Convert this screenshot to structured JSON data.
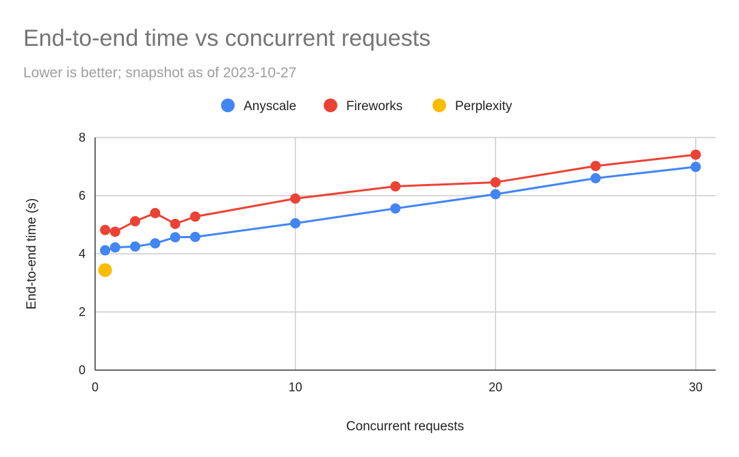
{
  "chart_data": {
    "type": "line",
    "title": "End-to-end time vs concurrent requests",
    "subtitle": "Lower is better; snapshot as of 2023-10-27",
    "xlabel": "Concurrent requests",
    "ylabel": "End-to-end time (s)",
    "xlim": [
      0,
      31
    ],
    "ylim": [
      0,
      8
    ],
    "xticks": [
      0,
      10,
      20,
      30
    ],
    "yticks": [
      0,
      2,
      4,
      6,
      8
    ],
    "grid": true,
    "legend_position": "top",
    "series": [
      {
        "name": "Anyscale",
        "color": "#4285f4",
        "x": [
          0.5,
          1,
          2,
          3,
          4,
          5,
          10,
          15,
          20,
          25,
          30
        ],
        "y": [
          4.12,
          4.22,
          4.25,
          4.36,
          4.57,
          4.58,
          5.05,
          5.56,
          6.05,
          6.6,
          6.99
        ]
      },
      {
        "name": "Fireworks",
        "color": "#ea4335",
        "x": [
          0.5,
          1,
          2,
          3,
          4,
          5,
          10,
          15,
          20,
          25,
          30
        ],
        "y": [
          4.82,
          4.76,
          5.12,
          5.4,
          5.03,
          5.28,
          5.9,
          6.32,
          6.46,
          7.02,
          7.41
        ]
      },
      {
        "name": "Perplexity",
        "color": "#fbbc04",
        "x": [
          0.5
        ],
        "y": [
          3.44
        ]
      }
    ]
  }
}
